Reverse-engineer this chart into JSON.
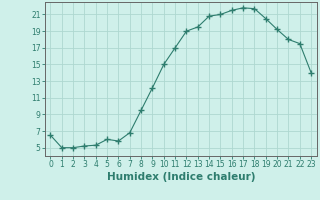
{
  "x": [
    0,
    1,
    2,
    3,
    4,
    5,
    6,
    7,
    8,
    9,
    10,
    11,
    12,
    13,
    14,
    15,
    16,
    17,
    18,
    19,
    20,
    21,
    22,
    23
  ],
  "y": [
    6.5,
    5.0,
    5.0,
    5.2,
    5.3,
    6.0,
    5.8,
    6.8,
    9.5,
    12.2,
    15.0,
    17.0,
    19.0,
    19.5,
    20.8,
    21.0,
    21.5,
    21.8,
    21.7,
    20.5,
    19.2,
    18.0,
    17.5,
    14.0
  ],
  "line_color": "#2e7d6e",
  "marker": "+",
  "marker_size": 4,
  "bg_color": "#cff0ea",
  "grid_color": "#aed8d0",
  "xlabel": "Humidex (Indice chaleur)",
  "ylim": [
    4,
    22.5
  ],
  "xlim": [
    -0.5,
    23.5
  ],
  "yticks": [
    5,
    7,
    9,
    11,
    13,
    15,
    17,
    19,
    21
  ],
  "xticks": [
    0,
    1,
    2,
    3,
    4,
    5,
    6,
    7,
    8,
    9,
    10,
    11,
    12,
    13,
    14,
    15,
    16,
    17,
    18,
    19,
    20,
    21,
    22,
    23
  ],
  "tick_fontsize": 5.5,
  "xlabel_fontsize": 7.5
}
